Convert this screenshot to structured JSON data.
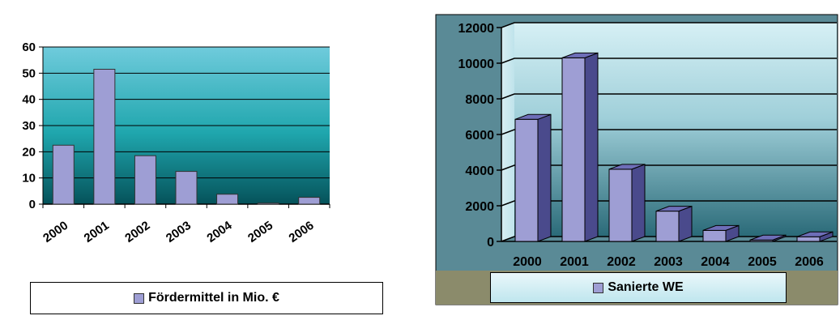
{
  "chart_data": [
    {
      "type": "bar",
      "categories": [
        "2000",
        "2001",
        "2002",
        "2003",
        "2004",
        "2005",
        "2006"
      ],
      "series": [
        {
          "name": "Fördermittel in Mio. €",
          "values": [
            22.5,
            51.5,
            18.5,
            12.5,
            3.8,
            0.4,
            2.6
          ]
        }
      ],
      "ylim": [
        0,
        60
      ],
      "yticks": [
        "0",
        "10",
        "20",
        "30",
        "40",
        "50",
        "60"
      ],
      "grid": true,
      "legend_position": "bottom",
      "colors": {
        "bar": "#9e9ed4",
        "plot_top": "#6fcbdc",
        "plot_mid": "#1fa6ad",
        "plot_bottom": "#05525a"
      }
    },
    {
      "type": "bar",
      "categories": [
        "2000",
        "2001",
        "2002",
        "2003",
        "2004",
        "2005",
        "2006"
      ],
      "series": [
        {
          "name": "Sanierte WE",
          "values": [
            6850,
            10300,
            4050,
            1700,
            620,
            80,
            260
          ]
        }
      ],
      "ylim": [
        0,
        12000
      ],
      "yticks": [
        "0",
        "2000",
        "4000",
        "6000",
        "8000",
        "10000",
        "12000"
      ],
      "grid": true,
      "legend_position": "bottom",
      "colors": {
        "bar_front": "#9e9ed4",
        "bar_side": "#4a4a8c",
        "bar_top": "#6e6eb8",
        "wall_top": "#d6f0f5",
        "wall_bottom": "#2a6a78",
        "floor": "#8b8b6b"
      }
    }
  ]
}
